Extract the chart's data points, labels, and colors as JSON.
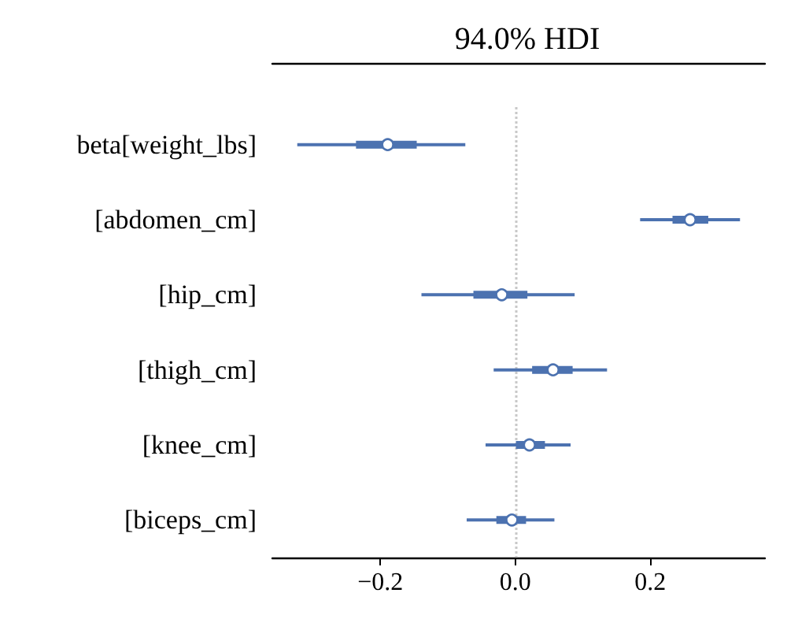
{
  "chart_data": {
    "type": "box",
    "title": "94.0% HDI",
    "orientation": "horizontal",
    "categories": [
      "beta[weight_lbs]",
      "[abdomen_cm]",
      "[hip_cm]",
      "[thigh_cm]",
      "[knee_cm]",
      "[biceps_cm]"
    ],
    "series": [
      {
        "color": "#4c72b0",
        "boxes": [
          {
            "low": -0.323,
            "q1": -0.236,
            "median": -0.189,
            "q3": -0.146,
            "high": -0.074
          },
          {
            "low": 0.185,
            "q1": 0.233,
            "median": 0.259,
            "q3": 0.286,
            "high": 0.333
          },
          {
            "low": -0.139,
            "q1": -0.062,
            "median": -0.02,
            "q3": 0.018,
            "high": 0.088
          },
          {
            "low": -0.032,
            "q1": 0.025,
            "median": 0.056,
            "q3": 0.085,
            "high": 0.136
          },
          {
            "low": -0.044,
            "q1": 0.001,
            "median": 0.021,
            "q3": 0.044,
            "high": 0.082
          },
          {
            "low": -0.072,
            "q1": -0.028,
            "median": -0.005,
            "q3": 0.016,
            "high": 0.058
          }
        ]
      }
    ],
    "xlim": [
      -0.36,
      0.37
    ],
    "xticks": [
      {
        "value": -0.2,
        "label": "−0.2"
      },
      {
        "value": 0,
        "label": "0.0"
      },
      0.2
    ],
    "marker": "circle",
    "ref_lines": [
      {
        "axis": "x",
        "value": 0,
        "color": "#c8c8c8",
        "line_style": "dotted"
      }
    ]
  }
}
